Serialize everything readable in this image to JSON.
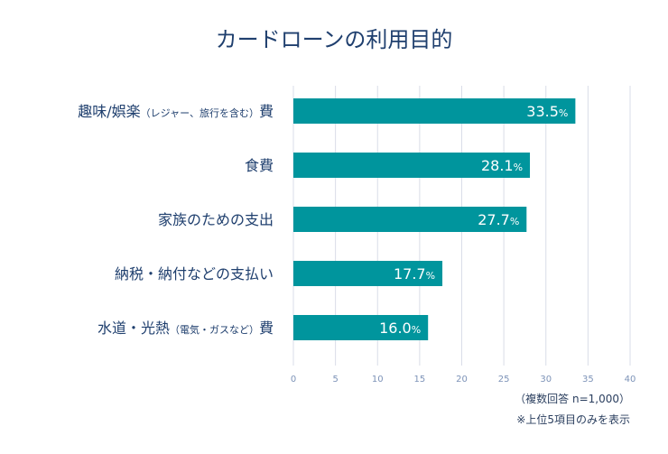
{
  "chart_data": {
    "type": "bar",
    "orientation": "horizontal",
    "title": "カードローンの利用目的",
    "categories": [
      {
        "main": "趣味/娯楽",
        "sub": "（レジャー、旅行を含む）",
        "suffix": "費"
      },
      {
        "main": "食費",
        "sub": "",
        "suffix": ""
      },
      {
        "main": "家族のための支出",
        "sub": "",
        "suffix": ""
      },
      {
        "main": "納税・納付などの支払い",
        "sub": "",
        "suffix": ""
      },
      {
        "main": "水道・光熱",
        "sub": "（電気・ガスなど）",
        "suffix": "費"
      }
    ],
    "values": [
      33.5,
      28.1,
      27.7,
      17.7,
      16.0
    ],
    "value_labels": [
      "33.5",
      "28.1",
      "27.7",
      "17.7",
      "16.0"
    ],
    "unit": "%",
    "xlim": [
      0,
      40
    ],
    "xticks": [
      "0",
      "5",
      "10",
      "15",
      "20",
      "25",
      "30",
      "35",
      "40"
    ],
    "grid": true,
    "bar_color": "#00959d",
    "notes": [
      "（複数回答 n=1,000）",
      "※上位5項目のみを表示"
    ]
  }
}
